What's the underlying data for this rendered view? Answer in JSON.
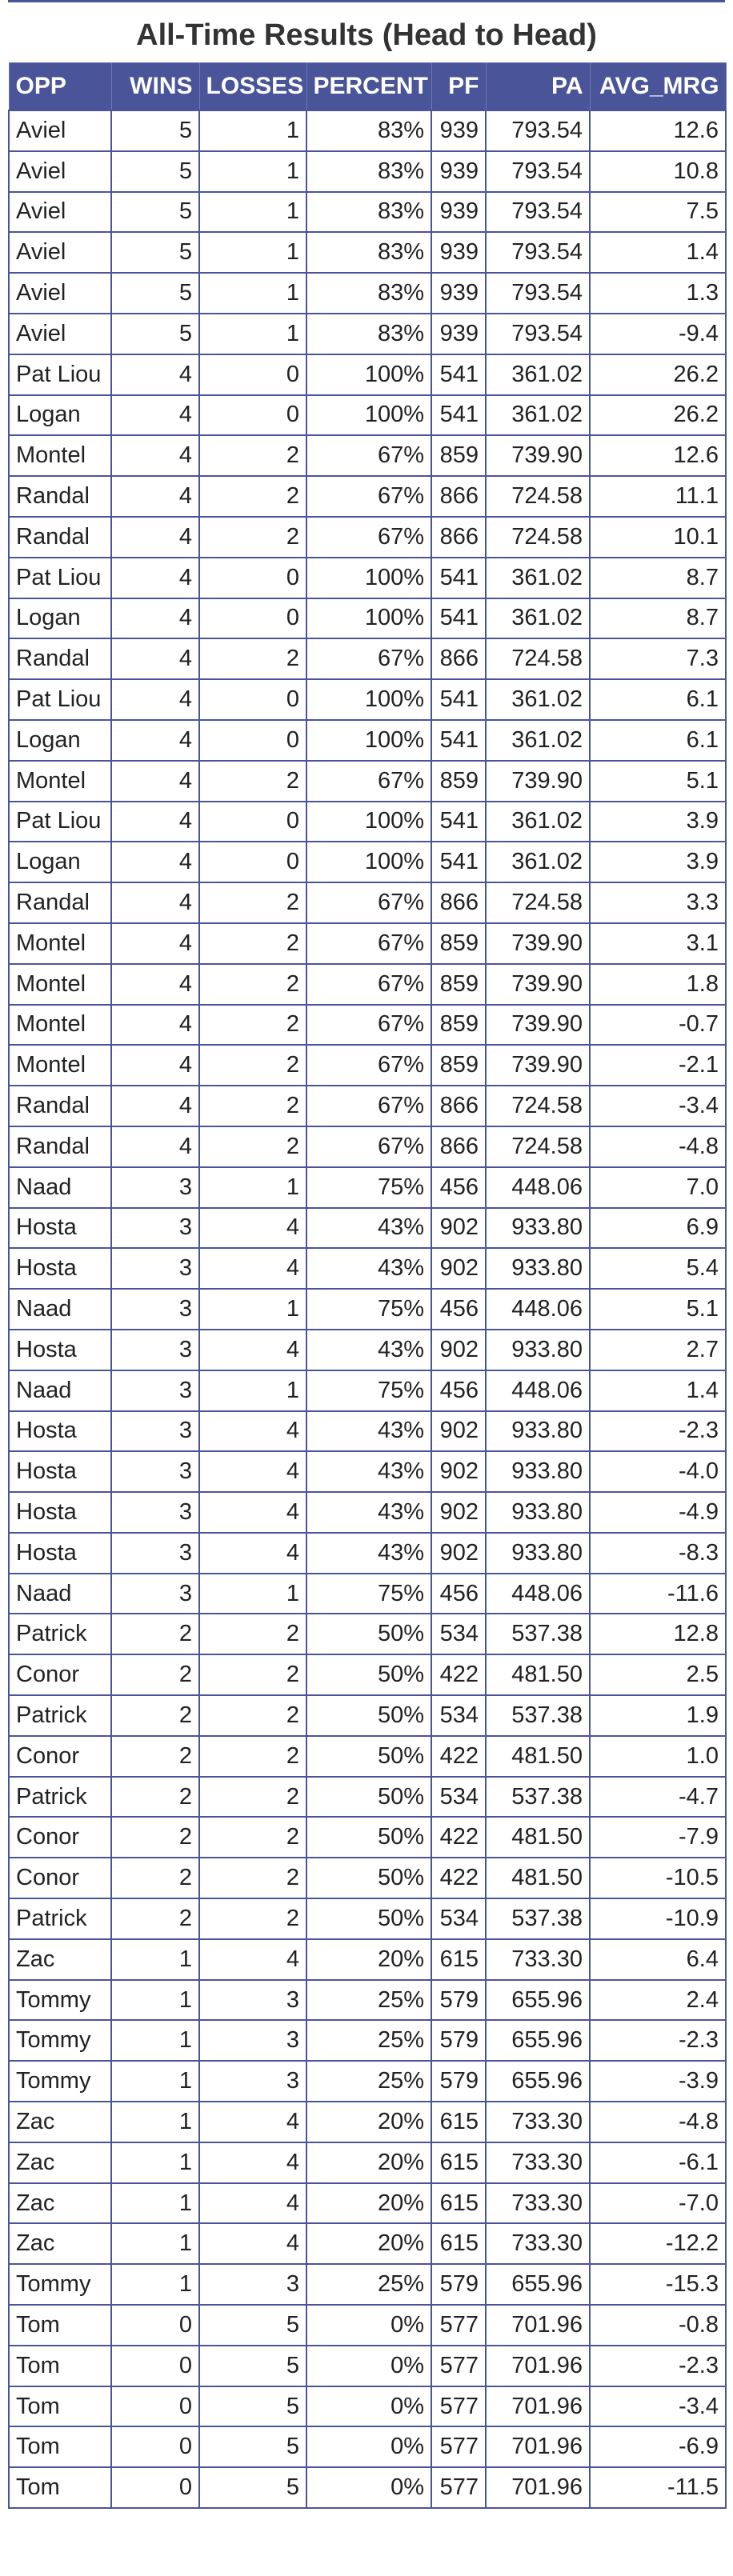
{
  "title": "All-Time Results (Head to Head)",
  "columns": [
    "OPP",
    "WINS",
    "LOSSES",
    "PERCENT",
    "PF",
    "PA",
    "AVG_MRG"
  ],
  "rows": [
    [
      "Aviel",
      "5",
      "1",
      "83%",
      "939",
      "793.54",
      "12.6"
    ],
    [
      "Aviel",
      "5",
      "1",
      "83%",
      "939",
      "793.54",
      "10.8"
    ],
    [
      "Aviel",
      "5",
      "1",
      "83%",
      "939",
      "793.54",
      "7.5"
    ],
    [
      "Aviel",
      "5",
      "1",
      "83%",
      "939",
      "793.54",
      "1.4"
    ],
    [
      "Aviel",
      "5",
      "1",
      "83%",
      "939",
      "793.54",
      "1.3"
    ],
    [
      "Aviel",
      "5",
      "1",
      "83%",
      "939",
      "793.54",
      "-9.4"
    ],
    [
      "Pat Liou",
      "4",
      "0",
      "100%",
      "541",
      "361.02",
      "26.2"
    ],
    [
      "Logan",
      "4",
      "0",
      "100%",
      "541",
      "361.02",
      "26.2"
    ],
    [
      "Montel",
      "4",
      "2",
      "67%",
      "859",
      "739.90",
      "12.6"
    ],
    [
      "Randal",
      "4",
      "2",
      "67%",
      "866",
      "724.58",
      "11.1"
    ],
    [
      "Randal",
      "4",
      "2",
      "67%",
      "866",
      "724.58",
      "10.1"
    ],
    [
      "Pat Liou",
      "4",
      "0",
      "100%",
      "541",
      "361.02",
      "8.7"
    ],
    [
      "Logan",
      "4",
      "0",
      "100%",
      "541",
      "361.02",
      "8.7"
    ],
    [
      "Randal",
      "4",
      "2",
      "67%",
      "866",
      "724.58",
      "7.3"
    ],
    [
      "Pat Liou",
      "4",
      "0",
      "100%",
      "541",
      "361.02",
      "6.1"
    ],
    [
      "Logan",
      "4",
      "0",
      "100%",
      "541",
      "361.02",
      "6.1"
    ],
    [
      "Montel",
      "4",
      "2",
      "67%",
      "859",
      "739.90",
      "5.1"
    ],
    [
      "Pat Liou",
      "4",
      "0",
      "100%",
      "541",
      "361.02",
      "3.9"
    ],
    [
      "Logan",
      "4",
      "0",
      "100%",
      "541",
      "361.02",
      "3.9"
    ],
    [
      "Randal",
      "4",
      "2",
      "67%",
      "866",
      "724.58",
      "3.3"
    ],
    [
      "Montel",
      "4",
      "2",
      "67%",
      "859",
      "739.90",
      "3.1"
    ],
    [
      "Montel",
      "4",
      "2",
      "67%",
      "859",
      "739.90",
      "1.8"
    ],
    [
      "Montel",
      "4",
      "2",
      "67%",
      "859",
      "739.90",
      "-0.7"
    ],
    [
      "Montel",
      "4",
      "2",
      "67%",
      "859",
      "739.90",
      "-2.1"
    ],
    [
      "Randal",
      "4",
      "2",
      "67%",
      "866",
      "724.58",
      "-3.4"
    ],
    [
      "Randal",
      "4",
      "2",
      "67%",
      "866",
      "724.58",
      "-4.8"
    ],
    [
      "Naad",
      "3",
      "1",
      "75%",
      "456",
      "448.06",
      "7.0"
    ],
    [
      "Hosta",
      "3",
      "4",
      "43%",
      "902",
      "933.80",
      "6.9"
    ],
    [
      "Hosta",
      "3",
      "4",
      "43%",
      "902",
      "933.80",
      "5.4"
    ],
    [
      "Naad",
      "3",
      "1",
      "75%",
      "456",
      "448.06",
      "5.1"
    ],
    [
      "Hosta",
      "3",
      "4",
      "43%",
      "902",
      "933.80",
      "2.7"
    ],
    [
      "Naad",
      "3",
      "1",
      "75%",
      "456",
      "448.06",
      "1.4"
    ],
    [
      "Hosta",
      "3",
      "4",
      "43%",
      "902",
      "933.80",
      "-2.3"
    ],
    [
      "Hosta",
      "3",
      "4",
      "43%",
      "902",
      "933.80",
      "-4.0"
    ],
    [
      "Hosta",
      "3",
      "4",
      "43%",
      "902",
      "933.80",
      "-4.9"
    ],
    [
      "Hosta",
      "3",
      "4",
      "43%",
      "902",
      "933.80",
      "-8.3"
    ],
    [
      "Naad",
      "3",
      "1",
      "75%",
      "456",
      "448.06",
      "-11.6"
    ],
    [
      "Patrick",
      "2",
      "2",
      "50%",
      "534",
      "537.38",
      "12.8"
    ],
    [
      "Conor",
      "2",
      "2",
      "50%",
      "422",
      "481.50",
      "2.5"
    ],
    [
      "Patrick",
      "2",
      "2",
      "50%",
      "534",
      "537.38",
      "1.9"
    ],
    [
      "Conor",
      "2",
      "2",
      "50%",
      "422",
      "481.50",
      "1.0"
    ],
    [
      "Patrick",
      "2",
      "2",
      "50%",
      "534",
      "537.38",
      "-4.7"
    ],
    [
      "Conor",
      "2",
      "2",
      "50%",
      "422",
      "481.50",
      "-7.9"
    ],
    [
      "Conor",
      "2",
      "2",
      "50%",
      "422",
      "481.50",
      "-10.5"
    ],
    [
      "Patrick",
      "2",
      "2",
      "50%",
      "534",
      "537.38",
      "-10.9"
    ],
    [
      "Zac",
      "1",
      "4",
      "20%",
      "615",
      "733.30",
      "6.4"
    ],
    [
      "Tommy",
      "1",
      "3",
      "25%",
      "579",
      "655.96",
      "2.4"
    ],
    [
      "Tommy",
      "1",
      "3",
      "25%",
      "579",
      "655.96",
      "-2.3"
    ],
    [
      "Tommy",
      "1",
      "3",
      "25%",
      "579",
      "655.96",
      "-3.9"
    ],
    [
      "Zac",
      "1",
      "4",
      "20%",
      "615",
      "733.30",
      "-4.8"
    ],
    [
      "Zac",
      "1",
      "4",
      "20%",
      "615",
      "733.30",
      "-6.1"
    ],
    [
      "Zac",
      "1",
      "4",
      "20%",
      "615",
      "733.30",
      "-7.0"
    ],
    [
      "Zac",
      "1",
      "4",
      "20%",
      "615",
      "733.30",
      "-12.2"
    ],
    [
      "Tommy",
      "1",
      "3",
      "25%",
      "579",
      "655.96",
      "-15.3"
    ],
    [
      "Tom",
      "0",
      "5",
      "0%",
      "577",
      "701.96",
      "-0.8"
    ],
    [
      "Tom",
      "0",
      "5",
      "0%",
      "577",
      "701.96",
      "-2.3"
    ],
    [
      "Tom",
      "0",
      "5",
      "0%",
      "577",
      "701.96",
      "-3.4"
    ],
    [
      "Tom",
      "0",
      "5",
      "0%",
      "577",
      "701.96",
      "-6.9"
    ],
    [
      "Tom",
      "0",
      "5",
      "0%",
      "577",
      "701.96",
      "-11.5"
    ]
  ],
  "colors": {
    "header_bg": "#4a5599",
    "header_text": "#ffffff",
    "grid": "#4a5599",
    "text": "#222222"
  }
}
